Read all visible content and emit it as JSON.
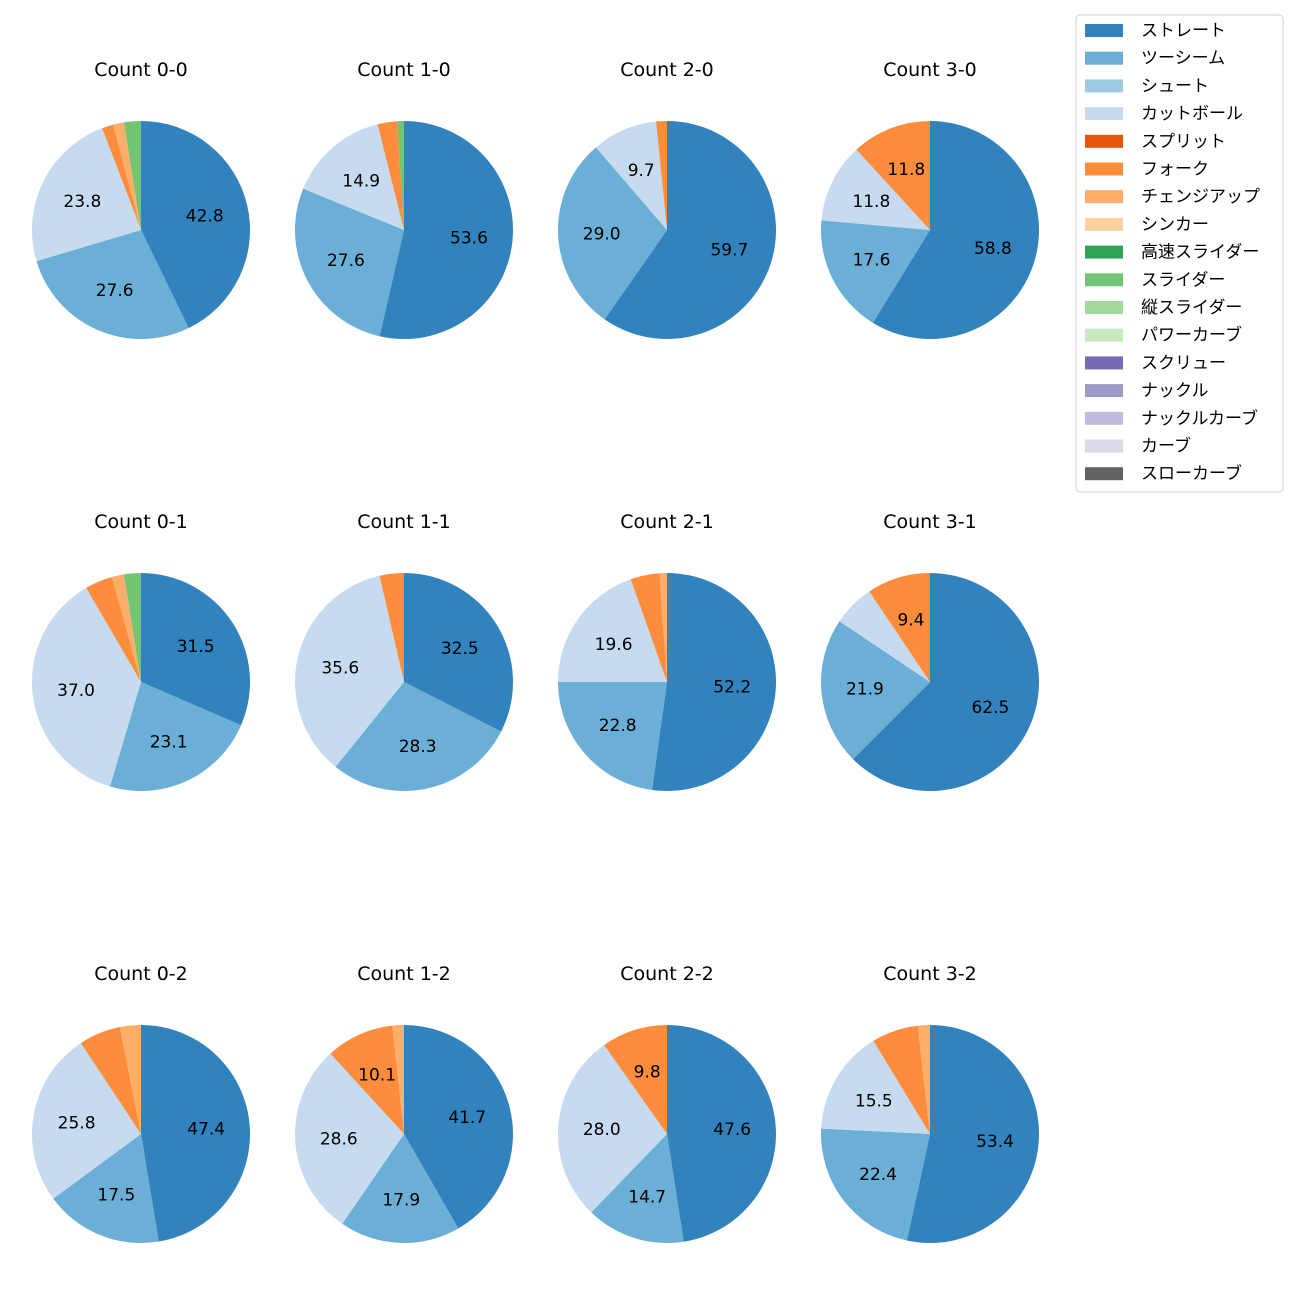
{
  "legend": {
    "items": [
      {
        "label": "ストレート",
        "color": "#3182bd"
      },
      {
        "label": "ツーシーム",
        "color": "#6baed6"
      },
      {
        "label": "シュート",
        "color": "#9ecae1"
      },
      {
        "label": "カットボール",
        "color": "#c6dbef"
      },
      {
        "label": "スプリット",
        "color": "#e6550d"
      },
      {
        "label": "フォーク",
        "color": "#fd8d3c"
      },
      {
        "label": "チェンジアップ",
        "color": "#fdae6b"
      },
      {
        "label": "シンカー",
        "color": "#fdd0a2"
      },
      {
        "label": "高速スライダー",
        "color": "#31a354"
      },
      {
        "label": "スライダー",
        "color": "#74c476"
      },
      {
        "label": "縦スライダー",
        "color": "#a1d99b"
      },
      {
        "label": "パワーカーブ",
        "color": "#c7e9c0"
      },
      {
        "label": "スクリュー",
        "color": "#756bb1"
      },
      {
        "label": "ナックル",
        "color": "#9e9ac8"
      },
      {
        "label": "ナックルカーブ",
        "color": "#bcbddc"
      },
      {
        "label": "カーブ",
        "color": "#dadaeb"
      },
      {
        "label": "スローカーブ",
        "color": "#636363"
      }
    ]
  },
  "chart_data": [
    {
      "type": "pie",
      "title": "Count 0-0",
      "slices": [
        {
          "label": "ストレート",
          "value": 42.8
        },
        {
          "label": "ツーシーム",
          "value": 27.6
        },
        {
          "label": "カットボール",
          "value": 23.8
        },
        {
          "label": "フォーク",
          "value": 1.7
        },
        {
          "label": "チェンジアップ",
          "value": 1.6
        },
        {
          "label": "スライダー",
          "value": 2.5
        }
      ],
      "show_labels": [
        true,
        true,
        true,
        false,
        false,
        false
      ]
    },
    {
      "type": "pie",
      "title": "Count 1-0",
      "slices": [
        {
          "label": "ストレート",
          "value": 53.6
        },
        {
          "label": "ツーシーム",
          "value": 27.6
        },
        {
          "label": "カットボール",
          "value": 14.9
        },
        {
          "label": "フォーク",
          "value": 2.9
        },
        {
          "label": "スライダー",
          "value": 1.0
        }
      ],
      "show_labels": [
        true,
        true,
        true,
        false,
        false
      ]
    },
    {
      "type": "pie",
      "title": "Count 2-0",
      "slices": [
        {
          "label": "ストレート",
          "value": 59.7
        },
        {
          "label": "ツーシーム",
          "value": 29.0
        },
        {
          "label": "カットボール",
          "value": 9.7
        },
        {
          "label": "フォーク",
          "value": 1.6
        }
      ],
      "show_labels": [
        true,
        true,
        true,
        false
      ]
    },
    {
      "type": "pie",
      "title": "Count 3-0",
      "slices": [
        {
          "label": "ストレート",
          "value": 58.8
        },
        {
          "label": "ツーシーム",
          "value": 17.6
        },
        {
          "label": "カットボール",
          "value": 11.8
        },
        {
          "label": "フォーク",
          "value": 11.8
        }
      ],
      "show_labels": [
        true,
        true,
        true,
        true
      ]
    },
    {
      "type": "pie",
      "title": "Count 0-1",
      "slices": [
        {
          "label": "ストレート",
          "value": 31.5
        },
        {
          "label": "ツーシーム",
          "value": 23.1
        },
        {
          "label": "カットボール",
          "value": 37.0
        },
        {
          "label": "フォーク",
          "value": 4.1
        },
        {
          "label": "チェンジアップ",
          "value": 1.8
        },
        {
          "label": "スライダー",
          "value": 2.5
        }
      ],
      "show_labels": [
        true,
        true,
        true,
        false,
        false,
        false
      ]
    },
    {
      "type": "pie",
      "title": "Count 1-1",
      "slices": [
        {
          "label": "ストレート",
          "value": 32.5
        },
        {
          "label": "ツーシーム",
          "value": 28.3
        },
        {
          "label": "カットボール",
          "value": 35.6
        },
        {
          "label": "フォーク",
          "value": 3.6
        }
      ],
      "show_labels": [
        true,
        true,
        true,
        false
      ]
    },
    {
      "type": "pie",
      "title": "Count 2-1",
      "slices": [
        {
          "label": "ストレート",
          "value": 52.2
        },
        {
          "label": "ツーシーム",
          "value": 22.8
        },
        {
          "label": "カットボール",
          "value": 19.6
        },
        {
          "label": "フォーク",
          "value": 4.3
        },
        {
          "label": "チェンジアップ",
          "value": 1.1
        }
      ],
      "show_labels": [
        true,
        true,
        true,
        false,
        false
      ]
    },
    {
      "type": "pie",
      "title": "Count 3-1",
      "slices": [
        {
          "label": "ストレート",
          "value": 62.5
        },
        {
          "label": "ツーシーム",
          "value": 21.9
        },
        {
          "label": "カットボール",
          "value": 6.2
        },
        {
          "label": "フォーク",
          "value": 9.4
        }
      ],
      "show_labels": [
        true,
        true,
        false,
        true
      ]
    },
    {
      "type": "pie",
      "title": "Count 0-2",
      "slices": [
        {
          "label": "ストレート",
          "value": 47.4
        },
        {
          "label": "ツーシーム",
          "value": 17.5
        },
        {
          "label": "カットボール",
          "value": 25.8
        },
        {
          "label": "フォーク",
          "value": 6.2
        },
        {
          "label": "チェンジアップ",
          "value": 3.1
        }
      ],
      "show_labels": [
        true,
        true,
        true,
        false,
        false
      ]
    },
    {
      "type": "pie",
      "title": "Count 1-2",
      "slices": [
        {
          "label": "ストレート",
          "value": 41.7
        },
        {
          "label": "ツーシーム",
          "value": 17.9
        },
        {
          "label": "カットボール",
          "value": 28.6
        },
        {
          "label": "フォーク",
          "value": 10.1
        },
        {
          "label": "チェンジアップ",
          "value": 1.7
        }
      ],
      "show_labels": [
        true,
        true,
        true,
        true,
        false
      ]
    },
    {
      "type": "pie",
      "title": "Count 2-2",
      "slices": [
        {
          "label": "ストレート",
          "value": 47.6
        },
        {
          "label": "ツーシーム",
          "value": 14.7
        },
        {
          "label": "カットボール",
          "value": 28.0
        },
        {
          "label": "フォーク",
          "value": 9.8
        }
      ],
      "show_labels": [
        true,
        true,
        true,
        true
      ]
    },
    {
      "type": "pie",
      "title": "Count 3-2",
      "slices": [
        {
          "label": "ストレート",
          "value": 53.4
        },
        {
          "label": "ツーシーム",
          "value": 22.4
        },
        {
          "label": "カットボール",
          "value": 15.5
        },
        {
          "label": "フォーク",
          "value": 6.9
        },
        {
          "label": "チェンジアップ",
          "value": 1.8
        }
      ],
      "show_labels": [
        true,
        true,
        true,
        false,
        false
      ]
    }
  ]
}
